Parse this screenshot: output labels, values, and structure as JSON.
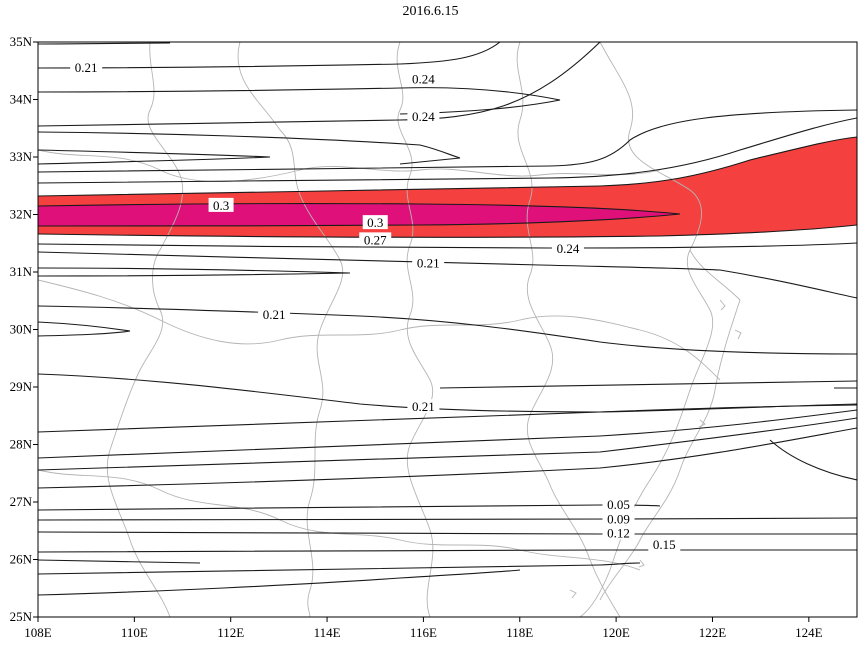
{
  "title": "2016.6.15",
  "x_ticks": [
    "108E",
    "110E",
    "112E",
    "114E",
    "116E",
    "118E",
    "120E",
    "122E",
    "124E"
  ],
  "y_ticks": [
    "35N",
    "34N",
    "33N",
    "32N",
    "31N",
    "30N",
    "29N",
    "28N",
    "27N",
    "26N",
    "25N"
  ],
  "extent": {
    "lon": [
      108,
      125
    ],
    "lat": [
      25,
      35
    ]
  },
  "colors": {
    "band_outer": "#f54040",
    "band_inner": "#e0107a",
    "contour": "#1a1a1a",
    "border": "#b4b4b4"
  },
  "contour_labels": [
    {
      "text": "0.21",
      "lon": 109.0,
      "lat": 34.55
    },
    {
      "text": "0.24",
      "lon": 116.0,
      "lat": 34.35
    },
    {
      "text": "0.24",
      "lon": 116.0,
      "lat": 33.7
    },
    {
      "text": "0.3",
      "lon": 111.8,
      "lat": 32.15
    },
    {
      "text": "0.3",
      "lon": 115.0,
      "lat": 31.85
    },
    {
      "text": "0.27",
      "lon": 115.0,
      "lat": 31.55
    },
    {
      "text": "0.24",
      "lon": 119.0,
      "lat": 31.4
    },
    {
      "text": "0.21",
      "lon": 116.1,
      "lat": 31.15
    },
    {
      "text": "0.21",
      "lon": 112.9,
      "lat": 30.25
    },
    {
      "text": "0.21",
      "lon": 116.0,
      "lat": 28.65
    },
    {
      "text": "0.05",
      "lon": 120.05,
      "lat": 26.95
    },
    {
      "text": "0.09",
      "lon": 120.05,
      "lat": 26.7
    },
    {
      "text": "0.12",
      "lon": 120.05,
      "lat": 26.45
    },
    {
      "text": "0.15",
      "lon": 121.0,
      "lat": 26.25
    }
  ]
}
